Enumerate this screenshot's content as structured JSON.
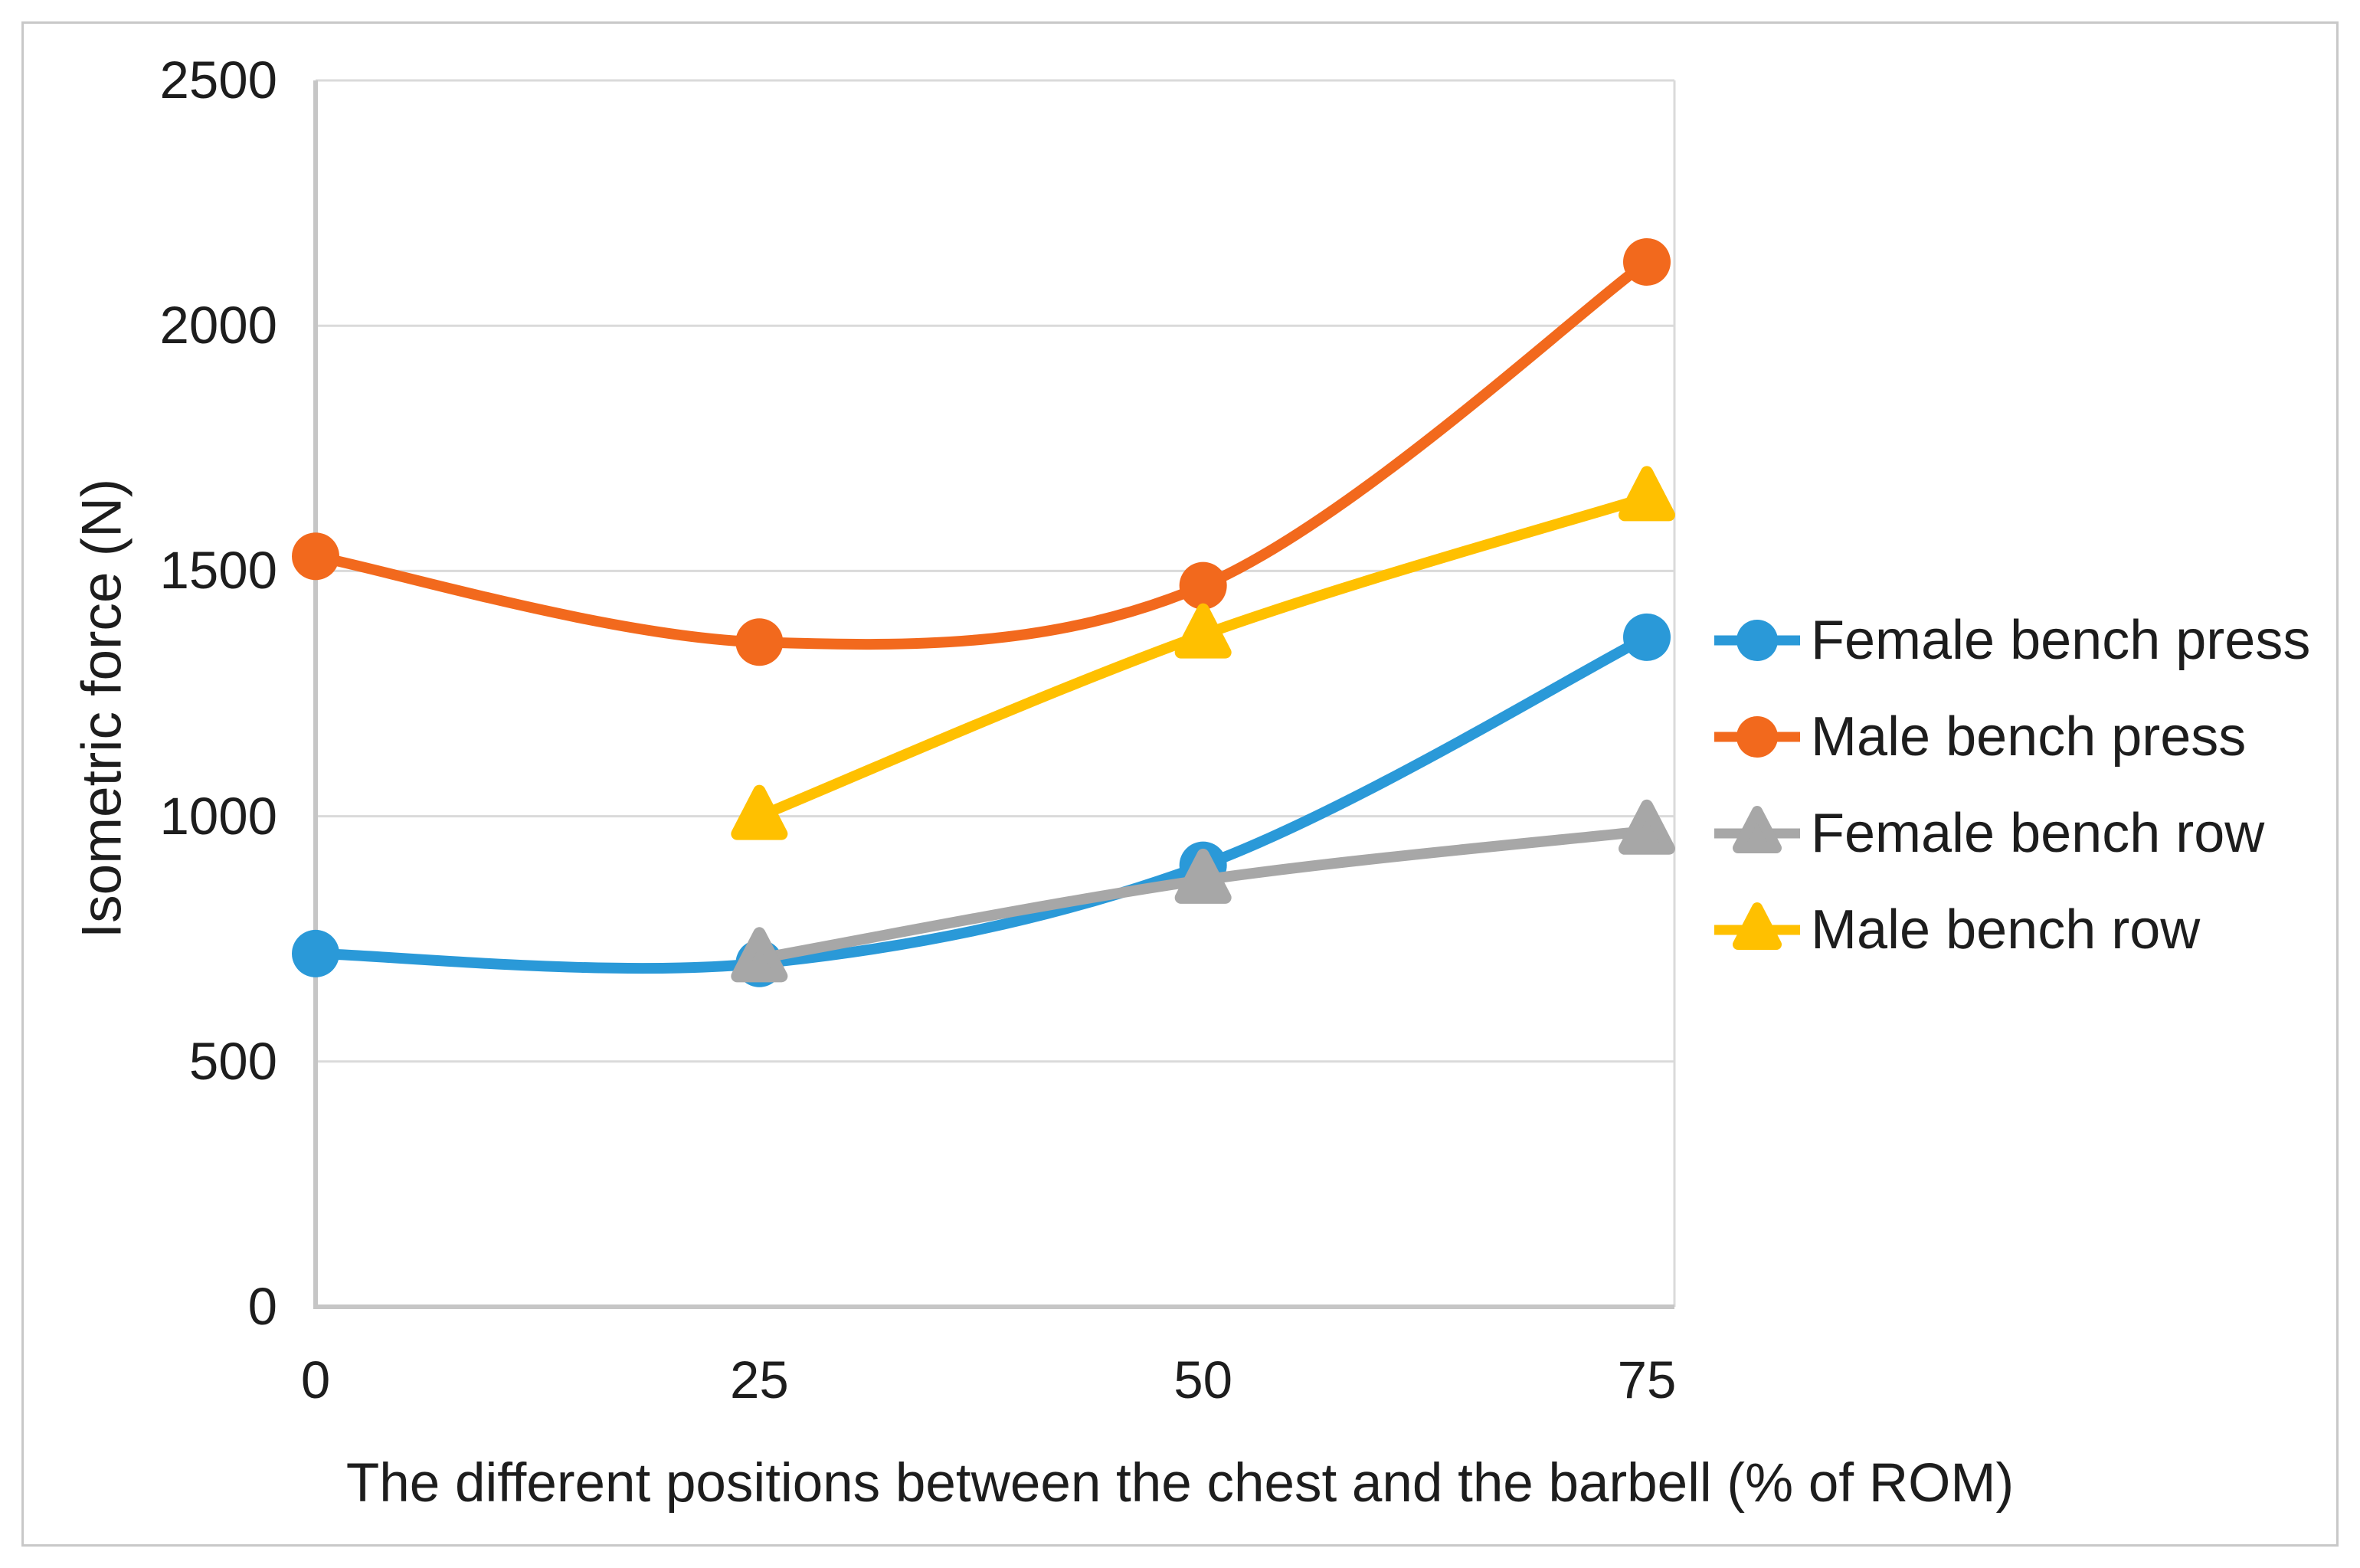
{
  "figure": {
    "x_axis_title": "The different positions between the chest and the barbell (% of ROM)",
    "y_axis_title": "Isometric force (N)"
  },
  "axes": {
    "y_tick_labels": [
      "0",
      "500",
      "1000",
      "1500",
      "2000",
      "2500"
    ],
    "y_tick_values": [
      0,
      500,
      1000,
      1500,
      2000,
      2500
    ],
    "x_tick_labels": [
      "0",
      "25",
      "50",
      "75"
    ],
    "x_tick_values": [
      0,
      25,
      50,
      75
    ]
  },
  "legend": {
    "items": [
      {
        "label": "Female bench press",
        "marker": "circle",
        "color": "#2a99d8"
      },
      {
        "label": "Male bench press",
        "marker": "circle",
        "color": "#f2691d"
      },
      {
        "label": "Female bench row",
        "marker": "triangle",
        "color": "#a7a7a7"
      },
      {
        "label": "Male bench row",
        "marker": "triangle",
        "color": "#ffc000"
      }
    ]
  },
  "chart_data": {
    "type": "line",
    "smooth": true,
    "x": [
      0,
      25,
      50,
      75
    ],
    "xlabel": "The different positions between the chest and the barbell (% of ROM)",
    "ylabel": "Isometric force (N)",
    "ylim": [
      0,
      2500
    ],
    "y_tick_step": 500,
    "grid": "horizontal",
    "legend_position": "right",
    "series": [
      {
        "name": "Female bench press",
        "marker": "circle",
        "color": "#2a99d8",
        "values": [
          720,
          700,
          900,
          1365
        ]
      },
      {
        "name": "Male bench press",
        "marker": "circle",
        "color": "#f2691d",
        "values": [
          1530,
          1355,
          1470,
          2130
        ]
      },
      {
        "name": "Female bench row",
        "marker": "triangle",
        "color": "#a7a7a7",
        "values": [
          null,
          710,
          870,
          970
        ]
      },
      {
        "name": "Male bench row",
        "marker": "triangle",
        "color": "#ffc000",
        "values": [
          null,
          1000,
          1370,
          1650
        ]
      }
    ]
  },
  "style_colors": {
    "gridline": "#dadada",
    "axis_line": "#c6c6c6",
    "figure_border": "#c8c8c8",
    "text": "#1d1d1d",
    "background": "#ffffff"
  }
}
